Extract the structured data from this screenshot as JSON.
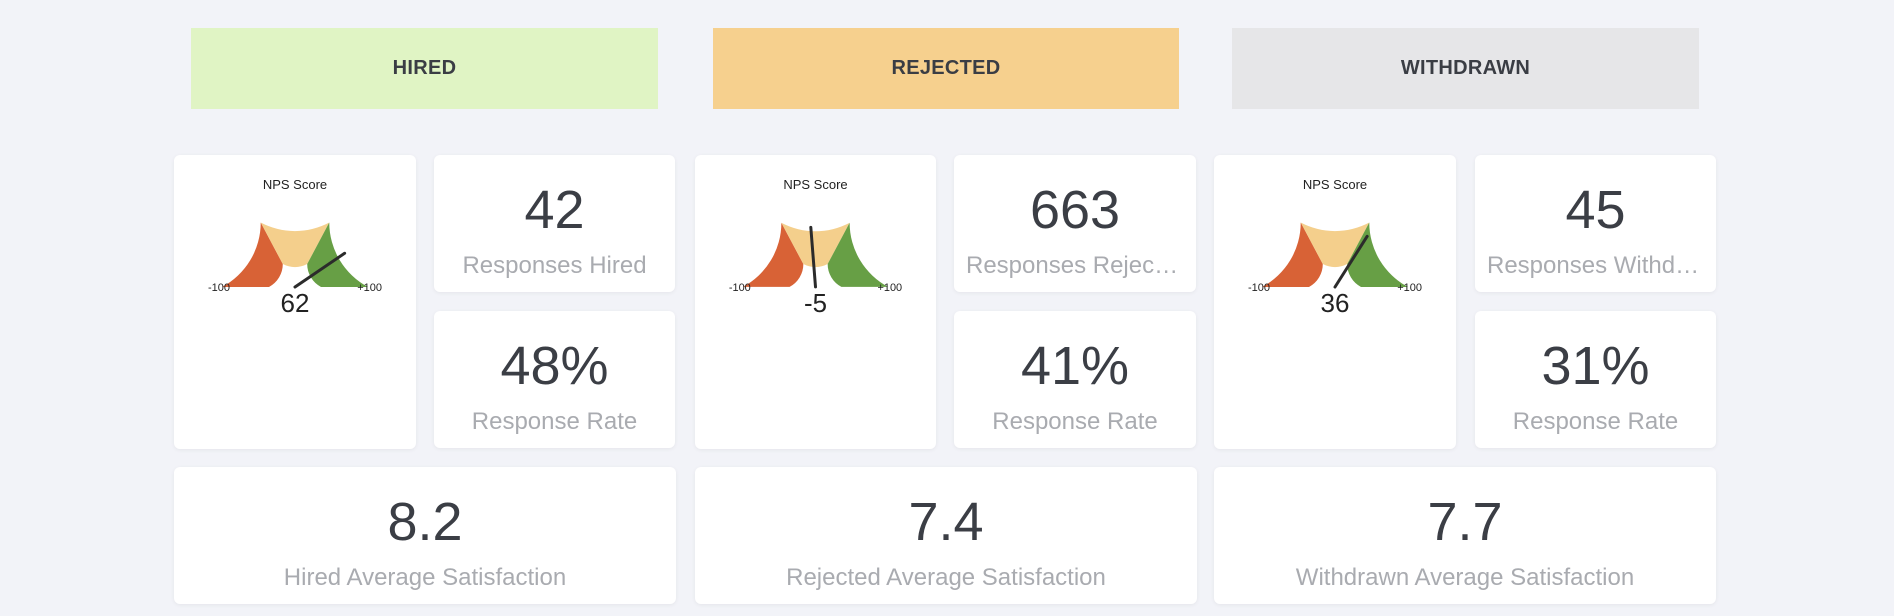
{
  "colors": {
    "hired_bg": "#e0f4c4",
    "rejected_bg": "#f6d08e",
    "withdrawn_bg": "#e6e6e8",
    "detractor": "#d86236",
    "passive": "#f4cf8c",
    "promoter": "#679f45",
    "needle": "#2b2b2b"
  },
  "headers": {
    "hired": "HIRED",
    "rejected": "REJECTED",
    "withdrawn": "WITHDRAWN"
  },
  "hired": {
    "gauge": {
      "title": "NPS Score",
      "min_label": "-100",
      "max_label": "+100",
      "value_label": "62",
      "value": 62
    },
    "responses": {
      "value": "42",
      "label": "Responses Hired"
    },
    "rate": {
      "value": "48%",
      "label": "Response Rate"
    },
    "satisfaction": {
      "value": "8.2",
      "label": "Hired Average Satisfaction"
    }
  },
  "rejected": {
    "gauge": {
      "title": "NPS Score",
      "min_label": "-100",
      "max_label": "+100",
      "value_label": "-5",
      "value": -5
    },
    "responses": {
      "value": "663",
      "label": "Responses Rejected"
    },
    "rate": {
      "value": "41%",
      "label": "Response Rate"
    },
    "satisfaction": {
      "value": "7.4",
      "label": "Rejected Average Satisfaction"
    }
  },
  "withdrawn": {
    "gauge": {
      "title": "NPS Score",
      "min_label": "-100",
      "max_label": "+100",
      "value_label": "36",
      "value": 36
    },
    "responses": {
      "value": "45",
      "label": "Responses Withdrawn"
    },
    "rate": {
      "value": "31%",
      "label": "Response Rate"
    },
    "satisfaction": {
      "value": "7.7",
      "label": "Withdrawn Average Satisfaction"
    }
  }
}
